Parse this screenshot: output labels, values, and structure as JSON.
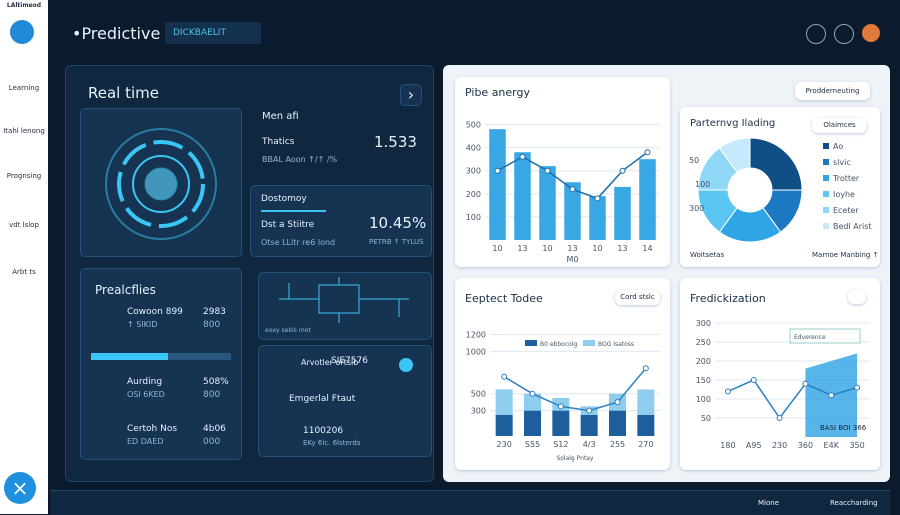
{
  "sidebar": {
    "brand": "LAltimeod",
    "items": [
      "Learning",
      "Itahl lenong",
      "Prognsing",
      "vdt lslop",
      "Arbt ts"
    ]
  },
  "header": {
    "title": "Predictive",
    "search": "DICKBAELIT"
  },
  "realtime": {
    "title": "Real time",
    "stats": {
      "title": "Men afi",
      "label": "Thatics",
      "value": "1.533",
      "sub": "BBAL Aoon ↑/↑ /%"
    },
    "ratio": {
      "title": "Dostomoy",
      "label": "Dst a Stiitre",
      "value": "10.45%",
      "sub": "Otse LLltr re6 lond",
      "sub2": "PETRB ↑ TYLUS"
    },
    "profiles": {
      "title": "Prealcflies",
      "rows": [
        [
          "Cowoon 899",
          "2983",
          "↑ SIKID",
          "800"
        ],
        [
          "Aurding",
          "508%",
          "OSI 6KED",
          "800"
        ],
        [
          "Certoh Nos",
          "4b06",
          "ED DAED",
          "000"
        ]
      ]
    },
    "circuit": {
      "label": "eoey sebls mot"
    },
    "alerts": {
      "row1": "Arvotler ortslb",
      "row1_value": "SIE7576",
      "row2": "Emgerlal Ftaut",
      "row3": "1100206",
      "row3_sub": "EKy 6lc. 6lsterds"
    }
  },
  "charts": [
    {
      "type": "bar",
      "title": "Pibe anergy",
      "categories": [
        "10",
        "13",
        "10",
        "13",
        "10",
        "13",
        "14"
      ],
      "series": [
        {
          "name": "bars",
          "color": "#39a7e3",
          "values": [
            480,
            380,
            320,
            250,
            190,
            230,
            350
          ]
        },
        {
          "name": "line",
          "color": "#1f6ea8",
          "values": [
            300,
            360,
            300,
            220,
            180,
            300,
            380
          ]
        }
      ],
      "ylim": [
        0,
        550
      ],
      "yticks": [
        100,
        200,
        300,
        400,
        500
      ],
      "x_title": "M0"
    },
    {
      "type": "pie",
      "title": "Parternvg Ilading",
      "button": "Olaimces",
      "ring_labels": [
        "50",
        "100",
        "300"
      ],
      "categories": [
        "Ao",
        "slvic",
        "Trotter",
        "Ioyhe",
        "Eceter",
        "Bedl Arist"
      ],
      "colors": [
        "#0f4f86",
        "#1c78c0",
        "#2fa5e6",
        "#5cc6f2",
        "#8fd8f7",
        "#c5eafb"
      ],
      "values": [
        25,
        15,
        20,
        15,
        15,
        10
      ],
      "footer_left": "Woitsetas",
      "footer_right": "Marnoe Manbing ↑"
    },
    {
      "type": "stacked_bar",
      "title": "Eeptect Todee",
      "button": "Cord stslc",
      "categories": [
        "230",
        "S55",
        "S12",
        "4/3",
        "255",
        "270"
      ],
      "series": [
        {
          "name": "B0 ebbocolg",
          "color": "#1c5f9c",
          "values": [
            250,
            300,
            300,
            250,
            300,
            250
          ]
        },
        {
          "name": "BOG lsatoss",
          "color": "#8fcdef",
          "values": [
            300,
            200,
            150,
            100,
            200,
            300
          ]
        }
      ],
      "line": {
        "color": "#2a7fbf",
        "values": [
          700,
          500,
          350,
          300,
          400,
          800
        ]
      },
      "ylim": [
        0,
        1300
      ],
      "yticks": [
        300,
        500,
        1000,
        1200
      ],
      "x_title": "Solalg Pntay"
    },
    {
      "type": "area",
      "title": "Fredickization",
      "legend": "Edverence",
      "note": "BASI BOI 366",
      "categories": [
        "180",
        "A95",
        "230",
        "360",
        "E4K",
        "350"
      ],
      "series": [
        {
          "name": "line",
          "color": "#2a7fbf",
          "values": [
            120,
            150,
            50,
            140,
            110,
            130
          ]
        },
        {
          "name": "area",
          "color": "#2da3e3",
          "values": [
            null,
            null,
            null,
            180,
            200,
            220
          ]
        }
      ],
      "ylim": [
        0,
        300
      ],
      "yticks": [
        50,
        100,
        150,
        200,
        250,
        300
      ]
    }
  ],
  "top_button": "Prodderneuting",
  "footer": {
    "left": "Mione",
    "right": "Reaccharding"
  }
}
